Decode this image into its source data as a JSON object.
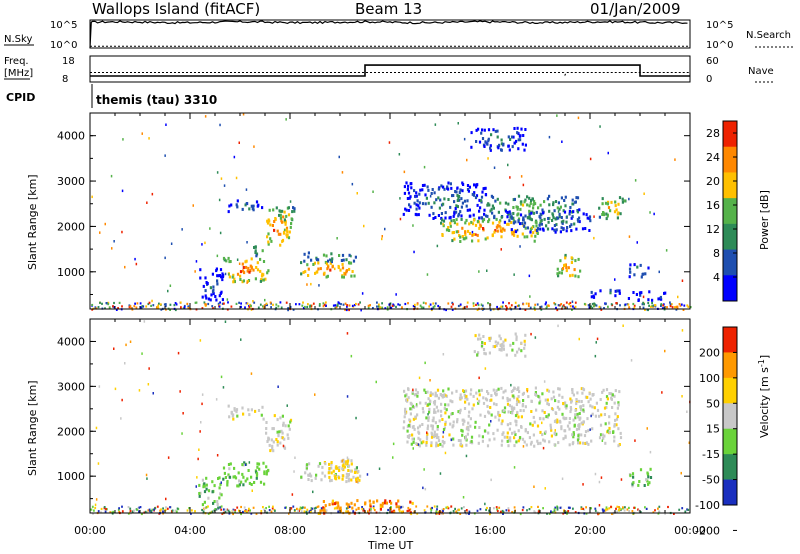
{
  "header": {
    "station": "Wallops Island (fitACF)",
    "beam": "Beam 13",
    "date": "01/Jan/2009"
  },
  "strips": {
    "nsky": {
      "label": "N.Sky",
      "ticks": [
        "10^5",
        "10^0"
      ]
    },
    "nsearch": {
      "label": "N.Search",
      "ticks": [
        "10^5",
        "10^0"
      ]
    },
    "freq": {
      "label_line1": "Freq.",
      "label_line2": "[MHz]",
      "ticks": [
        "18",
        "8"
      ]
    },
    "nave": {
      "label": "Nave",
      "ticks": [
        "60",
        "0"
      ]
    },
    "cpid": {
      "label": "CPID",
      "value": "themis (tau) 3310"
    }
  },
  "chart_data": [
    {
      "type": "line",
      "name": "N.Sky / N.Search",
      "x_unit": "hours UT",
      "ylim": [
        0,
        5
      ],
      "nsky_log10_level": 4.6,
      "nsearch_log10_level": 0.3
    },
    {
      "type": "line",
      "name": "Freq / Nave",
      "x": [
        0,
        11,
        11,
        22,
        22,
        24
      ],
      "freq_mhz": [
        10.3,
        10.3,
        14.5,
        14.5,
        10.3,
        10.3
      ],
      "freq_ylim": [
        8,
        18
      ],
      "nave_ylim": [
        0,
        60
      ],
      "nave_level": 22,
      "nave_dip_at": 19
    },
    {
      "type": "heatmap",
      "ylabel": "Slant Range [km]",
      "xlim": [
        0,
        24
      ],
      "ylim": [
        180,
        4500
      ],
      "yticks": [
        "1000",
        "2000",
        "3000",
        "4000"
      ],
      "colorbar": {
        "label": "Power [dB]",
        "ticks": [
          "4",
          "8",
          "12",
          "16",
          "20",
          "24",
          "28"
        ],
        "range": [
          0,
          30
        ]
      },
      "colors": [
        "#0000ff",
        "#1f4fb0",
        "#2e8b57",
        "#55b24a",
        "#ffc000",
        "#ff8800",
        "#ee2200"
      ],
      "blobs": [
        {
          "t0": 5.3,
          "t1": 7.1,
          "r0": 800,
          "r1": 1350,
          "v": 27
        },
        {
          "t0": 6.4,
          "t1": 7.0,
          "r0": 1350,
          "r1": 1600,
          "v": 18
        },
        {
          "t0": 5.5,
          "t1": 6.9,
          "r0": 2350,
          "r1": 2600,
          "v": 12
        },
        {
          "t0": 7.0,
          "t1": 8.0,
          "r0": 1600,
          "r1": 2400,
          "v": 27
        },
        {
          "t0": 7.4,
          "t1": 8.2,
          "r0": 2100,
          "r1": 2500,
          "v": 20
        },
        {
          "t0": 8.4,
          "t1": 10.8,
          "r0": 900,
          "r1": 1250,
          "v": 26
        },
        {
          "t0": 8.5,
          "t1": 10.6,
          "r0": 1250,
          "r1": 1450,
          "v": 17
        },
        {
          "t0": 4.3,
          "t1": 5.3,
          "r0": 400,
          "r1": 1100,
          "v": 9
        },
        {
          "t0": 12.5,
          "t1": 15.8,
          "r0": 2200,
          "r1": 3000,
          "v": 12
        },
        {
          "t0": 14.0,
          "t1": 18.0,
          "r0": 1700,
          "r1": 2200,
          "v": 26
        },
        {
          "t0": 15.5,
          "t1": 19.5,
          "r0": 2200,
          "r1": 2700,
          "v": 18
        },
        {
          "t0": 16.5,
          "t1": 20.0,
          "r0": 1900,
          "r1": 2400,
          "v": 13
        },
        {
          "t0": 18.6,
          "t1": 19.6,
          "r0": 900,
          "r1": 1400,
          "v": 25
        },
        {
          "t0": 20.3,
          "t1": 21.4,
          "r0": 2200,
          "r1": 2700,
          "v": 22
        },
        {
          "t0": 15.2,
          "t1": 17.4,
          "r0": 3700,
          "r1": 4200,
          "v": 12
        },
        {
          "t0": 21.5,
          "t1": 22.3,
          "r0": 900,
          "r1": 1200,
          "v": 14
        },
        {
          "t0": 20.0,
          "t1": 21.2,
          "r0": 450,
          "r1": 650,
          "v": 12
        },
        {
          "t0": 21.5,
          "t1": 23.0,
          "r0": 400,
          "r1": 600,
          "v": 10
        }
      ]
    },
    {
      "type": "heatmap",
      "xlabel": "Time UT",
      "ylabel": "Slant Range [km]",
      "xlim": [
        0,
        24
      ],
      "ylim": [
        180,
        4500
      ],
      "xticks": [
        "00:00",
        "04:00",
        "08:00",
        "12:00",
        "16:00",
        "20:00",
        "00:00"
      ],
      "yticks": [
        "1000",
        "2000",
        "3000",
        "4000"
      ],
      "colorbar": {
        "label": "Velocity",
        "ticks": [
          "200",
          "100",
          "50",
          "15",
          "-15",
          "-50",
          "-100",
          "-200"
        ]
      },
      "colors": [
        "#1a2fbf",
        "#2e8b57",
        "#6ad33a",
        "#c8c8c8",
        "#ffd000",
        "#ff9900",
        "#ee2200"
      ],
      "blobs": [
        {
          "t0": 5.3,
          "t1": 7.1,
          "r0": 800,
          "r1": 1350,
          "v": 2
        },
        {
          "t0": 7.0,
          "t1": 8.0,
          "r0": 1600,
          "r1": 2400,
          "v": 3
        },
        {
          "t0": 5.5,
          "t1": 6.9,
          "r0": 2300,
          "r1": 2600,
          "v": 3
        },
        {
          "t0": 8.4,
          "t1": 10.8,
          "r0": 900,
          "r1": 1400,
          "v": 3
        },
        {
          "t0": 9.5,
          "t1": 10.7,
          "r0": 900,
          "r1": 1400,
          "v": 4
        },
        {
          "t0": 12.5,
          "t1": 21.2,
          "r0": 1700,
          "r1": 3000,
          "v": 3
        },
        {
          "t0": 15.3,
          "t1": 17.4,
          "r0": 3700,
          "r1": 4200,
          "v": 3
        },
        {
          "t0": 9.0,
          "t1": 13.0,
          "r0": 200,
          "r1": 500,
          "v": 5
        },
        {
          "t0": 4.3,
          "t1": 5.3,
          "r0": 400,
          "r1": 1000,
          "v": 2
        },
        {
          "t0": 21.5,
          "t1": 22.4,
          "r0": 800,
          "r1": 1200,
          "v": 2
        }
      ]
    }
  ]
}
